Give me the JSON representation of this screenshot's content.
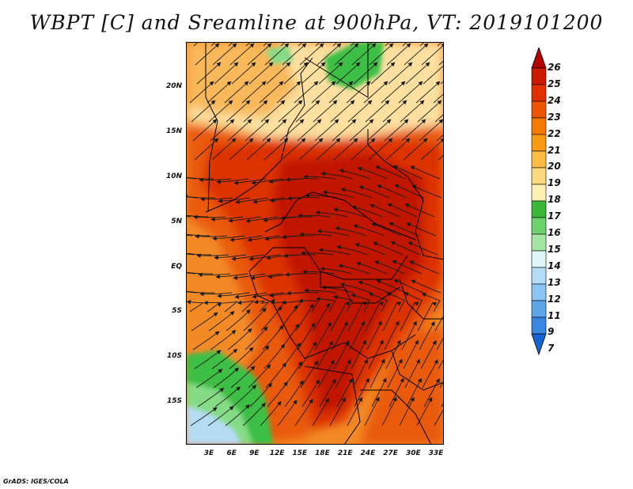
{
  "title": "WBPT [C] and Sreamline at 900hPa, VT: 2019101200",
  "credit": "GrADS: IGES/COLA",
  "lat_labels": [
    "20N",
    "15N",
    "10N",
    "5N",
    "EQ",
    "5S",
    "10S",
    "15S"
  ],
  "lon_labels": [
    "3E",
    "6E",
    "9E",
    "12E",
    "15E",
    "18E",
    "21E",
    "24E",
    "27E",
    "30E",
    "33E"
  ],
  "colorbar": {
    "labels": [
      "26",
      "25",
      "24",
      "23",
      "22",
      "21",
      "20",
      "19",
      "18",
      "17",
      "16",
      "15",
      "14",
      "13",
      "12",
      "11",
      "9",
      "7"
    ],
    "colors": [
      "#b30000",
      "#cc1a00",
      "#e03000",
      "#ee5500",
      "#f57a00",
      "#f99a10",
      "#fbbb45",
      "#fdd880",
      "#fdf0b0",
      "#3ab83a",
      "#6cd36c",
      "#a5e6a5",
      "#dff5f8",
      "#b5dcf7",
      "#8cc4f2",
      "#5ea6ea",
      "#3787e0",
      "#1464d2"
    ]
  },
  "map_colors": {
    "hottest": "#c01400",
    "hot": "#dc3000",
    "warm": "#e95a10",
    "mild": "#f38a25",
    "cool": "#f9b85a",
    "pale": "#fde0a0",
    "green": "#3cbf44",
    "light_green": "#86dc86",
    "pale_blue": "#b6dcf4",
    "blue": "#8cc3f0"
  }
}
